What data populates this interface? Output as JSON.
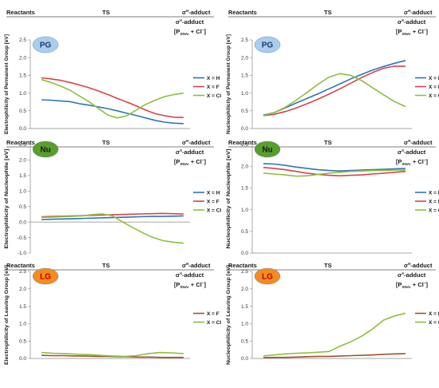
{
  "header": {
    "reactants": "Reactants",
    "ts": "TS",
    "sigma_main": "σ",
    "sigma_sup": "H",
    "sigma_rest": "-adduct",
    "sigma2_main": "σ",
    "sigma2_sup": "X",
    "sigma2_rest": "-adduct",
    "bracket_open": "[P",
    "bracket_sub": "SNAr",
    "bracket_mid": " + Cl",
    "bracket_sup": "−",
    "bracket_close": "]"
  },
  "colors": {
    "H": "#2e75b6",
    "F": "#d9434a",
    "Cl": "#8cbf3f",
    "F_lg": "#a0522d",
    "badge_pg": "#a9cdef",
    "badge_nu": "#5a9e2a",
    "badge_lg": "#f28c1e"
  },
  "chart_data": [
    {
      "type": "line",
      "badge": "PG",
      "ylabel": "Electrophilicity of Permanent Group [eV]",
      "ylim": [
        0,
        2.5
      ],
      "yticks": [
        "0.0",
        "0.5",
        "1.0",
        "1.5",
        "2.0",
        "2.5"
      ],
      "series": [
        {
          "name": "X = H",
          "color_key": "H",
          "values": [
            0.81,
            0.8,
            0.78,
            0.76,
            0.7,
            0.66,
            0.61,
            0.56,
            0.5,
            0.43,
            0.37,
            0.3,
            0.23,
            0.18,
            0.15,
            0.14
          ]
        },
        {
          "name": "X = F",
          "color_key": "F",
          "values": [
            1.43,
            1.4,
            1.36,
            1.3,
            1.23,
            1.15,
            1.06,
            0.96,
            0.85,
            0.75,
            0.64,
            0.52,
            0.42,
            0.36,
            0.32,
            0.31
          ]
        },
        {
          "name": "X = Cl",
          "color_key": "Cl",
          "values": [
            1.38,
            1.3,
            1.2,
            1.08,
            0.92,
            0.76,
            0.57,
            0.38,
            0.3,
            0.36,
            0.52,
            0.68,
            0.8,
            0.9,
            0.96,
            1.0
          ]
        }
      ]
    },
    {
      "type": "line",
      "badge": "PG",
      "ylabel": "Nucleophilicity of Permanent Group [eV]",
      "ylim": [
        0,
        2.5
      ],
      "yticks": [
        "0.0",
        "0.5",
        "1.0",
        "1.5",
        "2.0",
        "2.5"
      ],
      "series": [
        {
          "name": "X = H",
          "color_key": "H",
          "values": [
            0.38,
            0.45,
            0.58,
            0.72,
            0.85,
            0.98,
            1.12,
            1.26,
            1.4,
            1.53,
            1.65,
            1.75,
            1.84,
            1.92
          ]
        },
        {
          "name": "X = F",
          "color_key": "F",
          "values": [
            0.36,
            0.4,
            0.48,
            0.58,
            0.7,
            0.83,
            0.97,
            1.12,
            1.28,
            1.44,
            1.58,
            1.7,
            1.76,
            1.76
          ]
        },
        {
          "name": "X = Cl",
          "color_key": "Cl",
          "values": [
            0.36,
            0.45,
            0.6,
            0.8,
            1.02,
            1.25,
            1.45,
            1.55,
            1.5,
            1.35,
            1.15,
            0.95,
            0.76,
            0.62
          ]
        }
      ]
    },
    {
      "type": "line",
      "badge": "Nu",
      "ylabel": "Electrophilicity of Nucleophile [eV]",
      "ylim": [
        -1.0,
        2.5
      ],
      "yticks": [
        "-1.0",
        "-0.5",
        "0.0",
        "0.5",
        "1.0",
        "1.5",
        "2.0",
        "2.5"
      ],
      "series": [
        {
          "name": "X = H",
          "color_key": "H",
          "values": [
            0.08,
            0.09,
            0.1,
            0.11,
            0.12,
            0.13,
            0.14,
            0.15,
            0.16,
            0.17,
            0.18,
            0.18,
            0.19,
            0.2
          ]
        },
        {
          "name": "X = F",
          "color_key": "F",
          "values": [
            0.17,
            0.18,
            0.19,
            0.2,
            0.21,
            0.22,
            0.23,
            0.24,
            0.25,
            0.26,
            0.27,
            0.28,
            0.27,
            0.26
          ]
        },
        {
          "name": "X = Cl",
          "color_key": "Cl",
          "values": [
            0.15,
            0.16,
            0.17,
            0.18,
            0.2,
            0.24,
            0.26,
            0.2,
            0.0,
            -0.18,
            -0.35,
            -0.5,
            -0.6,
            -0.65,
            -0.68
          ]
        }
      ]
    },
    {
      "type": "line",
      "badge": "Nu",
      "ylabel": "Nucleophilicity of Nucleophile [eV]",
      "ylim": [
        0,
        2.5
      ],
      "yticks": [
        "0.0",
        "0.5",
        "1.0",
        "1.5",
        "2.0",
        "2.5"
      ],
      "series": [
        {
          "name": "X = H",
          "color_key": "H",
          "values": [
            2.06,
            2.05,
            2.02,
            1.98,
            1.95,
            1.92,
            1.9,
            1.89,
            1.9,
            1.91,
            1.92,
            1.93,
            1.94,
            1.95
          ]
        },
        {
          "name": "X = F",
          "color_key": "F",
          "values": [
            1.97,
            1.95,
            1.92,
            1.88,
            1.84,
            1.81,
            1.79,
            1.78,
            1.79,
            1.8,
            1.82,
            1.84,
            1.86,
            1.88
          ]
        },
        {
          "name": "X = Cl",
          "color_key": "Cl",
          "values": [
            1.84,
            1.82,
            1.8,
            1.77,
            1.78,
            1.81,
            1.84,
            1.86,
            1.88,
            1.89,
            1.9,
            1.9,
            1.91,
            1.91
          ]
        }
      ]
    },
    {
      "type": "line",
      "badge": "LG",
      "ylabel": "Electrophilicity of Leaving Group [eV]",
      "ylim": [
        0,
        2.5
      ],
      "yticks": [
        "0.0",
        "0.5",
        "1.0",
        "1.5",
        "2.0",
        "2.5"
      ],
      "series": [
        {
          "name": "X = F",
          "color_key": "F_lg",
          "values": [
            0.09,
            0.08,
            0.08,
            0.07,
            0.07,
            0.06,
            0.06,
            0.05,
            0.05,
            0.04,
            0.04,
            0.03,
            0.03,
            0.03
          ]
        },
        {
          "name": "X = Cl",
          "color_key": "Cl",
          "values": [
            0.17,
            0.15,
            0.14,
            0.12,
            0.11,
            0.09,
            0.07,
            0.06,
            0.08,
            0.14,
            0.17,
            0.16,
            0.14
          ]
        }
      ]
    },
    {
      "type": "line",
      "badge": "LG",
      "ylabel": "Nucleophilicity of Leaving Group [eV]",
      "ylim": [
        0,
        2.5
      ],
      "yticks": [
        "0.0",
        "0.5",
        "1.0",
        "1.5",
        "2.0",
        "2.5"
      ],
      "series": [
        {
          "name": "X = F",
          "color_key": "F_lg",
          "values": [
            0.02,
            0.03,
            0.03,
            0.04,
            0.05,
            0.06,
            0.06,
            0.07,
            0.08,
            0.09,
            0.1,
            0.12,
            0.13,
            0.14
          ]
        },
        {
          "name": "X = Cl",
          "color_key": "Cl",
          "values": [
            0.07,
            0.1,
            0.13,
            0.15,
            0.16,
            0.18,
            0.2,
            0.35,
            0.48,
            0.64,
            0.85,
            1.1,
            1.22,
            1.3
          ]
        }
      ]
    }
  ]
}
